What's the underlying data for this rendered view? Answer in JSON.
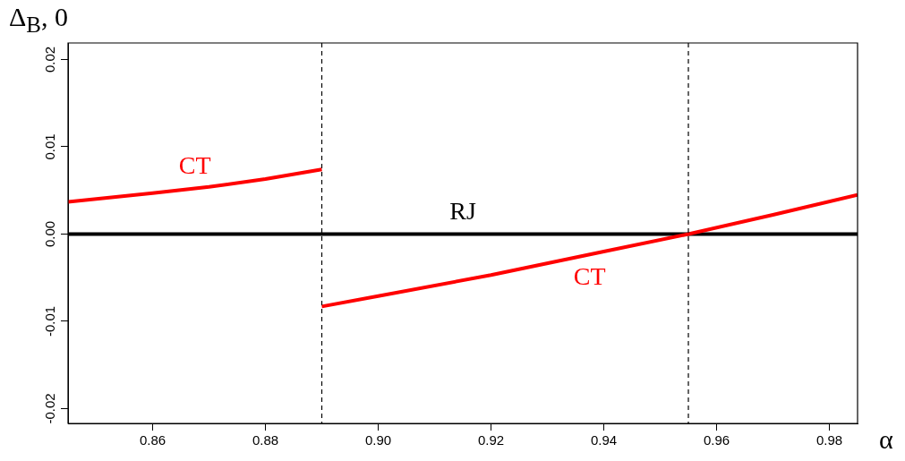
{
  "chart_data": {
    "type": "line",
    "xlabel": "α",
    "ylabel": "Δ$_{B}$, 0",
    "xlim": [
      0.845,
      0.985
    ],
    "xticks": [
      0.86,
      0.88,
      {
        "value": 0.9,
        "label": "0.90"
      },
      0.92,
      0.94,
      0.96,
      0.98
    ],
    "ylim": [
      -0.0217,
      0.0219
    ],
    "yticks": [
      -0.02,
      -0.01,
      {
        "value": 0,
        "label": "0.00"
      },
      0.01,
      0.02
    ],
    "grid": false,
    "legend": false,
    "marker": "none",
    "line_style": "solid",
    "series": [
      {
        "name": "CT",
        "color": "#ff0000",
        "x": [
          0.845,
          0.86,
          0.87,
          0.88,
          0.89
        ],
        "values": [
          0.0037,
          0.0047,
          0.0054,
          0.0063,
          0.0074
        ]
      },
      {
        "name": "CT",
        "color": "#ff0000",
        "x": [
          0.89,
          0.9,
          0.92,
          0.94,
          0.955,
          0.97,
          0.985
        ],
        "values": [
          -0.0083,
          -0.0071,
          -0.0047,
          -0.002,
          0.0,
          0.0022,
          0.0045
        ]
      },
      {
        "name": "RJ",
        "color": "#000000",
        "x": [
          0.845,
          0.985
        ],
        "values": [
          0.0,
          0.0
        ]
      }
    ],
    "ref_lines": [
      {
        "axis": "x",
        "value": 0.89,
        "line_style": "dashed",
        "color": "#000000"
      },
      {
        "axis": "x",
        "value": 0.955,
        "line_style": "dashed",
        "color": "#000000"
      }
    ]
  }
}
